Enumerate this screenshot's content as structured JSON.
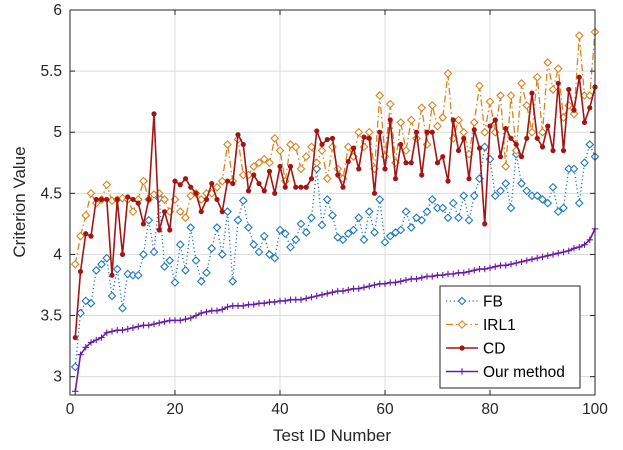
{
  "chart_data": {
    "type": "line",
    "xlabel": "Test ID Number",
    "ylabel": "Criterion Value",
    "xlim": [
      0,
      100
    ],
    "ylim": [
      2.85,
      6
    ],
    "xticks": [
      0,
      20,
      40,
      60,
      80,
      100
    ],
    "yticks": [
      3,
      3.5,
      4,
      4.5,
      5,
      5.5,
      6
    ],
    "ytick_labels": [
      "3",
      "3.5",
      "4",
      "4.5",
      "5",
      "5.5",
      "6"
    ],
    "grid": true,
    "legend_position": "bottom-right",
    "series": [
      {
        "name": "FB",
        "color": "#1f77c4",
        "line_style": "dotted",
        "marker": "diamond",
        "values": [
          3.08,
          3.52,
          3.62,
          3.6,
          3.87,
          3.92,
          3.97,
          3.66,
          3.88,
          3.56,
          3.84,
          3.83,
          3.83,
          4.0,
          4.28,
          4.02,
          4.46,
          3.9,
          3.95,
          3.77,
          4.08,
          3.87,
          4.22,
          3.95,
          3.78,
          3.85,
          4.05,
          4.22,
          4.0,
          4.35,
          3.78,
          4.28,
          4.44,
          4.22,
          4.08,
          4.02,
          4.15,
          4.0,
          3.97,
          4.2,
          4.17,
          4.06,
          4.12,
          4.25,
          4.18,
          4.3,
          4.7,
          4.24,
          4.45,
          4.32,
          4.14,
          4.12,
          4.17,
          4.2,
          4.3,
          4.12,
          4.35,
          4.18,
          4.45,
          4.1,
          4.15,
          4.18,
          4.2,
          4.35,
          4.22,
          4.3,
          4.28,
          4.35,
          4.45,
          4.38,
          4.38,
          4.3,
          4.42,
          4.3,
          4.48,
          4.28,
          4.48,
          4.62,
          4.88,
          4.78,
          4.48,
          4.52,
          4.58,
          4.38,
          4.82,
          4.58,
          4.52,
          4.48,
          4.48,
          4.45,
          4.42,
          4.55,
          4.35,
          4.38,
          4.7,
          4.7,
          4.42,
          4.75,
          4.9,
          4.8
        ]
      },
      {
        "name": "IRL1",
        "color": "#d9841f",
        "line_style": "dashdot",
        "marker": "diamond",
        "values": [
          3.92,
          4.15,
          4.32,
          4.5,
          4.42,
          4.45,
          4.57,
          4.44,
          4.45,
          4.46,
          4.45,
          4.35,
          4.45,
          4.6,
          4.45,
          4.49,
          4.5,
          4.45,
          4.35,
          4.45,
          4.35,
          4.3,
          4.48,
          4.5,
          4.45,
          4.5,
          4.5,
          4.55,
          4.6,
          4.9,
          4.6,
          4.94,
          4.65,
          4.65,
          4.72,
          4.75,
          4.78,
          4.75,
          4.95,
          4.85,
          4.6,
          4.9,
          4.88,
          4.7,
          4.8,
          4.88,
          4.75,
          4.85,
          4.62,
          4.88,
          4.7,
          4.62,
          4.88,
          4.8,
          5.0,
          4.88,
          5.0,
          4.7,
          5.3,
          4.8,
          5.23,
          4.75,
          5.08,
          4.85,
          5.1,
          4.95,
          5.2,
          4.9,
          5.22,
          5.05,
          5.12,
          5.48,
          4.95,
          5.1,
          5.0,
          4.82,
          5.08,
          5.38,
          5.0,
          5.25,
          5.0,
          5.3,
          4.72,
          5.3,
          4.85,
          5.4,
          5.22,
          5.0,
          5.45,
          5.0,
          5.57,
          5.35,
          5.52,
          5.12,
          5.22,
          5.15,
          5.79,
          5.3,
          5.3,
          5.82
        ]
      },
      {
        "name": "CD",
        "color": "#a31515",
        "line_style": "solid",
        "marker": "circle",
        "values": [
          3.32,
          3.86,
          4.17,
          4.15,
          4.45,
          4.45,
          4.45,
          3.83,
          4.45,
          4.0,
          4.47,
          4.45,
          4.42,
          4.25,
          4.45,
          5.15,
          4.2,
          4.35,
          4.2,
          4.6,
          4.57,
          4.62,
          4.55,
          4.5,
          4.35,
          4.45,
          4.58,
          4.45,
          4.35,
          4.6,
          4.58,
          4.98,
          4.9,
          4.52,
          4.65,
          4.58,
          4.52,
          4.68,
          4.5,
          4.72,
          4.55,
          4.72,
          4.55,
          4.55,
          4.55,
          4.62,
          5.01,
          4.9,
          4.94,
          4.95,
          4.65,
          4.55,
          4.76,
          4.87,
          4.7,
          4.96,
          4.95,
          4.5,
          5.0,
          4.7,
          5.1,
          4.62,
          4.9,
          4.75,
          4.75,
          5.0,
          4.65,
          5.0,
          5.0,
          4.75,
          4.8,
          4.6,
          5.1,
          4.85,
          4.95,
          4.62,
          5.02,
          4.87,
          4.25,
          5.05,
          5.1,
          4.8,
          5.03,
          4.95,
          4.9,
          4.8,
          4.95,
          5.32,
          4.95,
          4.88,
          5.05,
          4.85,
          5.4,
          4.85,
          5.35,
          5.18,
          5.45,
          5.08,
          5.2,
          5.37
        ]
      },
      {
        "name": "Our method",
        "color": "#6a1aa8",
        "line_style": "solid",
        "marker": "plus",
        "values": [
          2.88,
          3.18,
          3.24,
          3.28,
          3.3,
          3.32,
          3.36,
          3.37,
          3.38,
          3.38,
          3.39,
          3.4,
          3.41,
          3.42,
          3.42,
          3.43,
          3.44,
          3.45,
          3.46,
          3.46,
          3.46,
          3.47,
          3.48,
          3.5,
          3.52,
          3.53,
          3.54,
          3.54,
          3.55,
          3.57,
          3.58,
          3.58,
          3.58,
          3.59,
          3.59,
          3.6,
          3.6,
          3.61,
          3.61,
          3.62,
          3.62,
          3.63,
          3.63,
          3.63,
          3.64,
          3.65,
          3.66,
          3.67,
          3.68,
          3.69,
          3.7,
          3.7,
          3.71,
          3.72,
          3.72,
          3.73,
          3.74,
          3.75,
          3.76,
          3.76,
          3.77,
          3.77,
          3.78,
          3.79,
          3.8,
          3.8,
          3.81,
          3.82,
          3.82,
          3.83,
          3.83,
          3.84,
          3.84,
          3.85,
          3.85,
          3.86,
          3.87,
          3.88,
          3.88,
          3.89,
          3.9,
          3.91,
          3.91,
          3.92,
          3.93,
          3.94,
          3.95,
          3.96,
          3.97,
          3.98,
          3.99,
          4.0,
          4.01,
          4.02,
          4.03,
          4.05,
          4.06,
          4.08,
          4.12,
          4.21
        ]
      }
    ]
  }
}
